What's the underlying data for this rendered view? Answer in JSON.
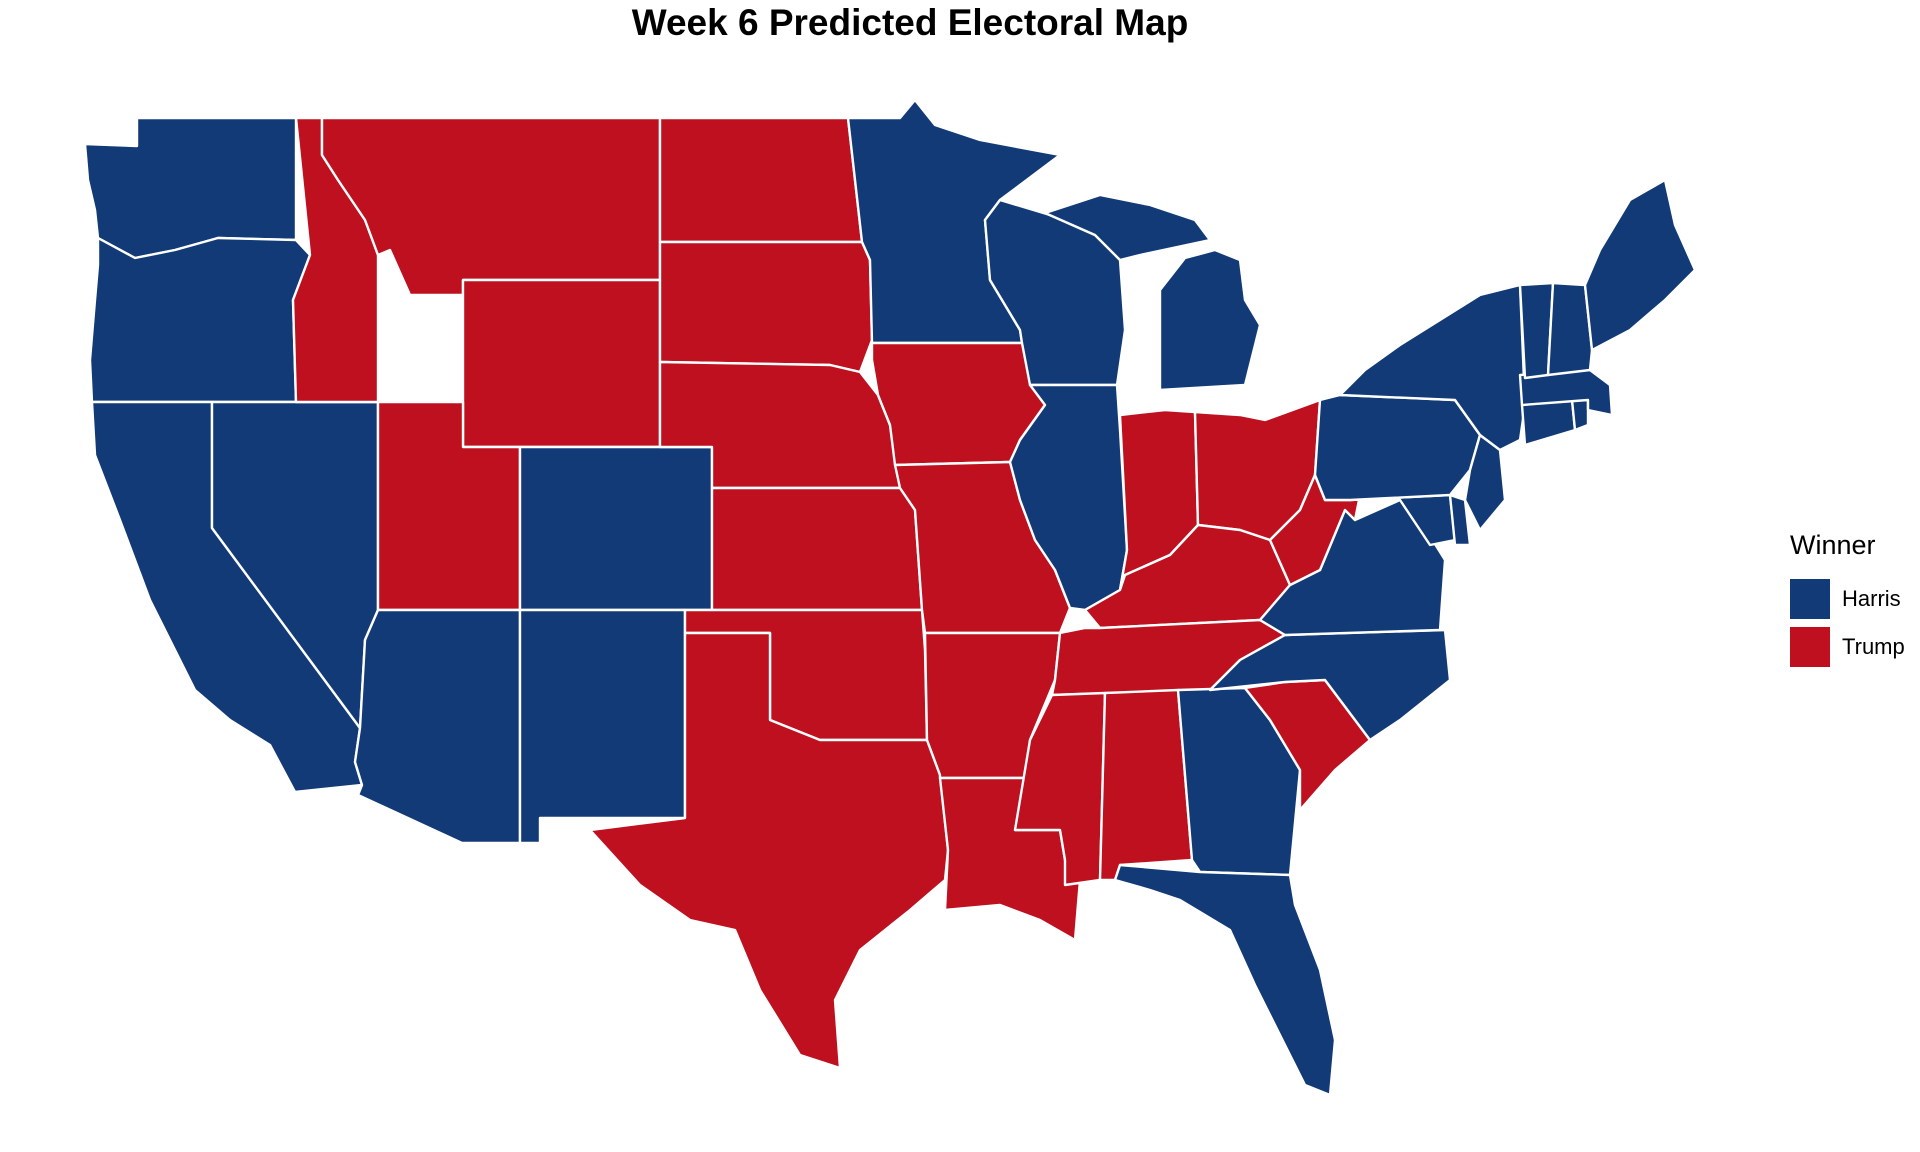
{
  "title": "Week 6 Predicted Electoral Map",
  "legend": {
    "title": "Winner",
    "items": [
      {
        "key": "harris",
        "label": "Harris",
        "color": "#123A77"
      },
      {
        "key": "trump",
        "label": "Trump",
        "color": "#BE101E"
      }
    ]
  },
  "colors": {
    "harris": "#123A77",
    "trump": "#BE101E",
    "border": "#FFFFFF",
    "background": "#FFFFFF"
  },
  "states": {
    "WA": "harris",
    "OR": "harris",
    "CA": "harris",
    "NV": "harris",
    "ID": "trump",
    "MT": "trump",
    "WY": "trump",
    "UT": "trump",
    "AZ": "harris",
    "CO": "harris",
    "NM": "harris",
    "ND": "trump",
    "SD": "trump",
    "NE": "trump",
    "KS": "trump",
    "OK": "trump",
    "TX": "trump",
    "MN": "harris",
    "IA": "trump",
    "MO": "trump",
    "AR": "trump",
    "LA": "trump",
    "WI": "harris",
    "IL": "harris",
    "MI": "harris",
    "IN": "trump",
    "OH": "trump",
    "KY": "trump",
    "TN": "trump",
    "MS": "trump",
    "AL": "trump",
    "GA": "harris",
    "FL": "harris",
    "SC": "trump",
    "NC": "harris",
    "VA": "harris",
    "WV": "trump",
    "MD": "harris",
    "DE": "harris",
    "PA": "harris",
    "NJ": "harris",
    "NY": "harris",
    "CT": "harris",
    "RI": "harris",
    "MA": "harris",
    "VT": "harris",
    "NH": "harris",
    "ME": "harris"
  }
}
